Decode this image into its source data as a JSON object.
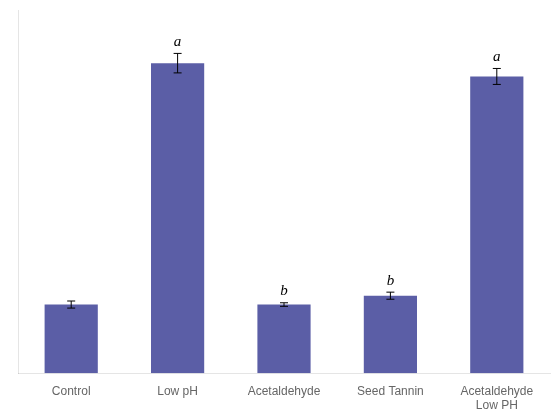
{
  "chart_data": {
    "type": "bar",
    "categories": [
      "Control",
      "Low pH",
      "Acetaldehyde",
      "Seed Tannin",
      "Acetaldehyde\nLow PH"
    ],
    "values": [
      0.155,
      0.7,
      0.155,
      0.175,
      0.67
    ],
    "errors": [
      0.008,
      0.022,
      0.004,
      0.008,
      0.018
    ],
    "color": "#5B5EA6",
    "ylim": [
      0,
      0.82
    ],
    "grid": false,
    "tick_labels": "x",
    "annotations": [
      {
        "text": "a",
        "x": "Low pH"
      },
      {
        "text": "b",
        "x": "Acetaldehyde"
      },
      {
        "text": "b",
        "x": "Seed Tannin"
      },
      {
        "text": "a",
        "x": "Acetaldehyde\nLow PH"
      }
    ]
  }
}
